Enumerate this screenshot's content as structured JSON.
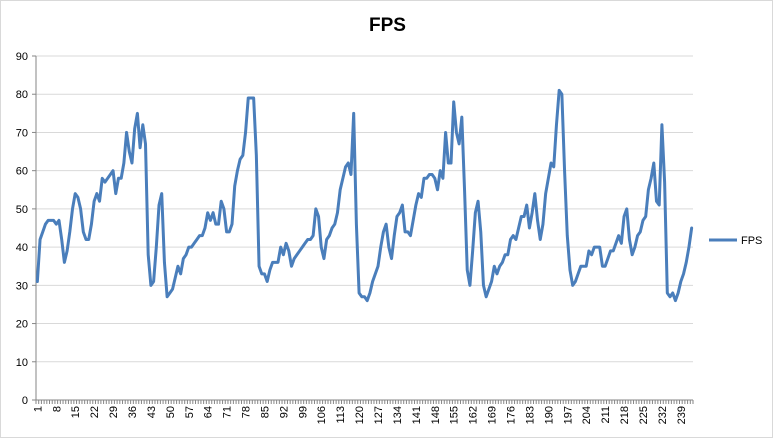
{
  "chart_data": {
    "type": "line",
    "title": "FPS",
    "xlabel": "",
    "ylabel": "",
    "ylim": [
      0,
      90
    ],
    "yticks": [
      0,
      10,
      20,
      30,
      40,
      50,
      60,
      70,
      80,
      90
    ],
    "xtick_labels": [
      "1",
      "8",
      "15",
      "22",
      "29",
      "36",
      "43",
      "50",
      "57",
      "64",
      "71",
      "78",
      "85",
      "92",
      "99",
      "106",
      "113",
      "120",
      "127",
      "134",
      "141",
      "148",
      "155",
      "162",
      "169",
      "176",
      "183",
      "190",
      "197",
      "204",
      "211",
      "218",
      "225",
      "232",
      "239"
    ],
    "grid": "horizontal-major",
    "legend_position": "right",
    "color": "#4a7ebb",
    "series": [
      {
        "name": "FPS",
        "values": [
          31,
          42,
          44,
          46,
          47,
          47,
          47,
          46,
          47,
          42,
          36,
          39,
          44,
          50,
          54,
          53,
          50,
          44,
          42,
          42,
          46,
          52,
          54,
          52,
          58,
          57,
          58,
          59,
          60,
          54,
          58,
          58,
          62,
          70,
          65,
          62,
          71,
          75,
          66,
          72,
          67,
          38,
          30,
          31,
          40,
          51,
          54,
          36,
          27,
          28,
          29,
          32,
          35,
          33,
          37,
          38,
          40,
          40,
          41,
          42,
          43,
          43,
          45,
          49,
          47,
          49,
          46,
          46,
          52,
          50,
          44,
          44,
          46,
          56,
          60,
          63,
          64,
          70,
          79,
          79,
          79,
          64,
          35,
          33,
          33,
          31,
          34,
          36,
          36,
          36,
          40,
          38,
          41,
          39,
          35,
          37,
          38,
          39,
          40,
          41,
          42,
          42,
          43,
          50,
          48,
          40,
          37,
          42,
          43,
          45,
          46,
          49,
          55,
          58,
          61,
          62,
          59,
          75,
          46,
          28,
          27,
          27,
          26,
          28,
          31,
          33,
          35,
          40,
          44,
          46,
          40,
          37,
          43,
          48,
          49,
          51,
          44,
          44,
          43,
          47,
          51,
          54,
          53,
          58,
          58,
          59,
          59,
          58,
          55,
          60,
          58,
          70,
          62,
          62,
          78,
          70,
          67,
          74,
          55,
          34,
          30,
          39,
          49,
          52,
          44,
          30,
          27,
          29,
          31,
          35,
          33,
          35,
          36,
          38,
          38,
          42,
          43,
          42,
          45,
          48,
          48,
          51,
          45,
          49,
          54,
          47,
          42,
          46,
          54,
          58,
          62,
          61,
          72,
          81,
          80,
          60,
          43,
          34,
          30,
          31,
          33,
          35,
          35,
          35,
          39,
          38,
          40,
          40,
          40,
          35,
          35,
          37,
          39,
          39,
          41,
          43,
          41,
          48,
          50,
          42,
          38,
          40,
          43,
          44,
          47,
          48,
          55,
          58,
          62,
          52,
          51,
          72,
          57,
          28,
          27,
          28,
          26,
          28,
          31,
          33,
          36,
          40,
          45
        ]
      }
    ]
  }
}
